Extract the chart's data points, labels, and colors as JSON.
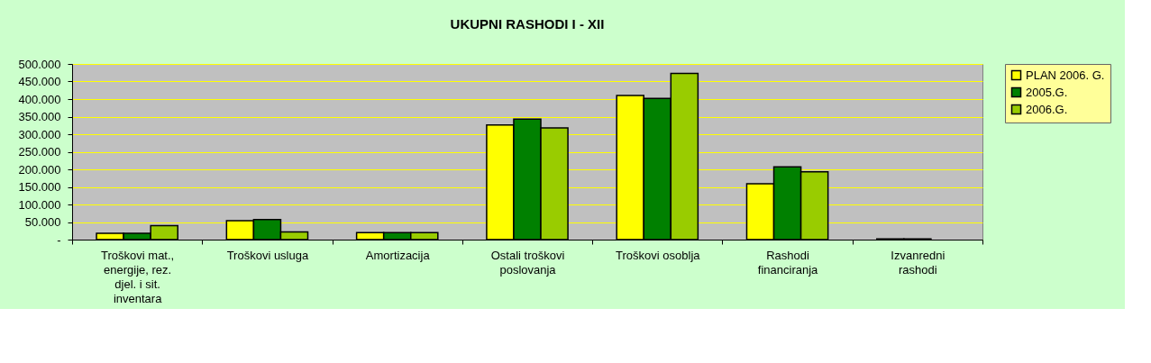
{
  "chart_data": {
    "type": "bar",
    "title": "UKUPNI RASHODI I - XII",
    "categories": [
      "Troškovi mat., energije, rez. djel. i sit. inventara",
      "Troškovi usluga",
      "Amortizacija",
      "Ostali troškovi poslovanja",
      "Troškovi osoblja",
      "Rashodi financiranja",
      "Izvanredni rashodi"
    ],
    "series": [
      {
        "name": "PLAN 2006. G.",
        "color": "#ffff00",
        "values": [
          18000,
          54000,
          20000,
          326000,
          410000,
          159000,
          2000
        ]
      },
      {
        "name": "2005.G.",
        "color": "#008000",
        "values": [
          18000,
          57000,
          20000,
          343000,
          402000,
          207000,
          2000
        ]
      },
      {
        "name": "2006.G.",
        "color": "#99cc00",
        "values": [
          40000,
          22000,
          20000,
          318000,
          473000,
          193000,
          null
        ]
      }
    ],
    "ylim": [
      0,
      500000
    ],
    "yticks": [
      {
        "value": 0,
        "label": "-"
      },
      {
        "value": 50000,
        "label": "50.000"
      },
      {
        "value": 100000,
        "label": "100.000"
      },
      {
        "value": 150000,
        "label": "150.000"
      },
      {
        "value": 200000,
        "label": "200.000"
      },
      {
        "value": 250000,
        "label": "250.000"
      },
      {
        "value": 300000,
        "label": "300.000"
      },
      {
        "value": 350000,
        "label": "350.000"
      },
      {
        "value": 400000,
        "label": "400.000"
      },
      {
        "value": 450000,
        "label": "450.000"
      },
      {
        "value": 500000,
        "label": "500.000"
      }
    ],
    "grid": "y",
    "legend": "right"
  }
}
